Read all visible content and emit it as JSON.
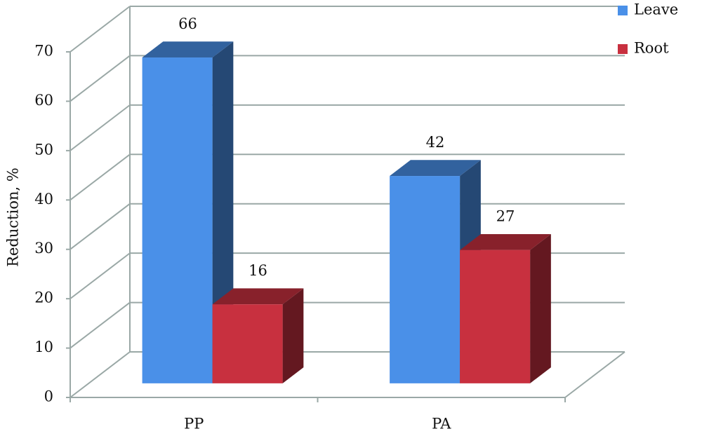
{
  "chart_data": {
    "type": "bar3d",
    "y_label": "Reduction, %",
    "categories": [
      "PP",
      "PA"
    ],
    "series": [
      {
        "name": "Leave",
        "color": "#4a90e8",
        "values": [
          66,
          42
        ]
      },
      {
        "name": "Root",
        "color": "#c8303f",
        "values": [
          16,
          27
        ]
      }
    ],
    "ylim": [
      0,
      70
    ],
    "yticks": [
      0,
      10,
      20,
      30,
      40,
      50,
      60,
      70
    ],
    "grid": true,
    "legend": "top-right"
  }
}
